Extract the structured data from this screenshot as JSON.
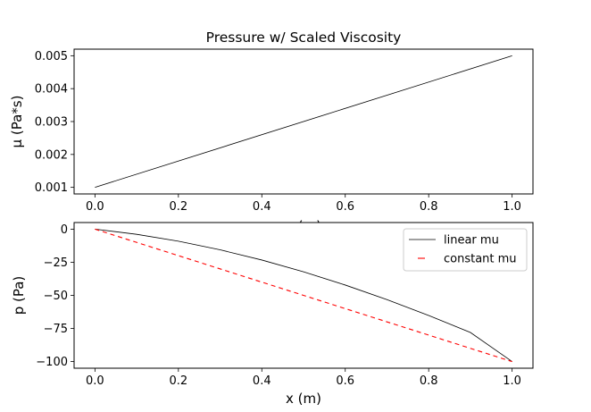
{
  "chart_data": [
    {
      "type": "line",
      "title": "Pressure w/ Scaled Viscosity",
      "xlabel": "x (m)",
      "ylabel": "μ (Pa*s)",
      "xlim": [
        -0.05,
        1.05
      ],
      "ylim": [
        0.0008,
        0.0052
      ],
      "xticks": [
        0.0,
        0.2,
        0.4,
        0.6,
        0.8,
        1.0
      ],
      "xtick_labels": [
        "0.0",
        "0.2",
        "0.4",
        "0.6",
        "0.8",
        "1.0"
      ],
      "yticks": [
        0.001,
        0.002,
        0.003,
        0.004,
        0.005
      ],
      "ytick_labels": [
        "0.001",
        "0.002",
        "0.003",
        "0.004",
        "0.005"
      ],
      "grid": false,
      "series": [
        {
          "color": "#000000",
          "style": "solid",
          "x": [
            0.0,
            1.0
          ],
          "y": [
            0.001,
            0.005
          ]
        }
      ]
    },
    {
      "type": "line",
      "xlabel": "x (m)",
      "ylabel": "p (Pa)",
      "xlim": [
        -0.05,
        1.05
      ],
      "ylim": [
        -105,
        5
      ],
      "xticks": [
        0.0,
        0.2,
        0.4,
        0.6,
        0.8,
        1.0
      ],
      "xtick_labels": [
        "0.0",
        "0.2",
        "0.4",
        "0.6",
        "0.8",
        "1.0"
      ],
      "yticks": [
        0,
        -25,
        -50,
        -75,
        -100
      ],
      "ytick_labels": [
        "0",
        "−25",
        "−50",
        "−75",
        "−100"
      ],
      "grid": false,
      "legend_position": "top-right",
      "series": [
        {
          "name": "linear mu",
          "color": "#000000",
          "style": "solid",
          "x": [
            0.0,
            0.1,
            0.2,
            0.3,
            0.4,
            0.5,
            0.6,
            0.7,
            0.8,
            0.9,
            1.0
          ],
          "y": [
            0,
            -3.9,
            -9.1,
            -15.6,
            -23.3,
            -32.2,
            -42.2,
            -53.2,
            -65.2,
            -78.0,
            -100
          ]
        },
        {
          "name": "constant mu",
          "color": "#ff0000",
          "style": "dashed",
          "x": [
            0.0,
            1.0
          ],
          "y": [
            0,
            -100
          ]
        }
      ]
    }
  ]
}
